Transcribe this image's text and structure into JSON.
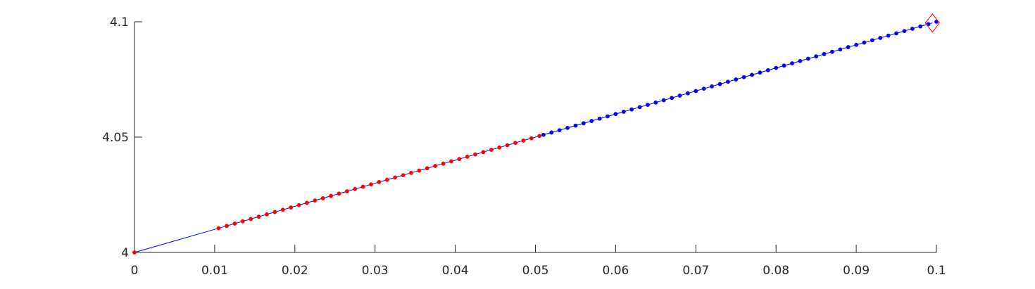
{
  "chart_data": {
    "type": "line",
    "title": "",
    "xlabel": "",
    "ylabel": "",
    "xlim": [
      0,
      0.1
    ],
    "ylim": [
      4,
      4.1
    ],
    "grid": false,
    "x_ticks": [
      0,
      0.01,
      0.02,
      0.03,
      0.04,
      0.05,
      0.06,
      0.07,
      0.08,
      0.09,
      0.1
    ],
    "x_tick_labels": [
      "0",
      "0.01",
      "0.02",
      "0.03",
      "0.04",
      "0.05",
      "0.06",
      "0.07",
      "0.08",
      "0.09",
      "0.1"
    ],
    "y_ticks": [
      4,
      4.05,
      4.1
    ],
    "y_tick_labels": [
      "4",
      "4.05",
      "4.1"
    ],
    "line": {
      "color": "#0000ff",
      "x": [
        0,
        0.0105,
        0.0995
      ],
      "y": [
        4,
        4.0105,
        4.0995
      ]
    },
    "series": [
      {
        "color": "#ff0000",
        "marker": "dot",
        "x_start": 0.0105,
        "x_end": 0.05,
        "step": 0.001,
        "extra_points": [
          [
            0,
            4
          ]
        ],
        "y_of_x": "4 + x"
      },
      {
        "color": "#0000ff",
        "marker": "dot",
        "x_start": 0.051,
        "x_end": 0.0995,
        "step": 0.001,
        "y_of_x": "4 + x"
      }
    ],
    "endpoint_marker": {
      "shape": "diamond",
      "color": "#ff0000",
      "x": 0.0995,
      "y": 4.0995
    }
  }
}
